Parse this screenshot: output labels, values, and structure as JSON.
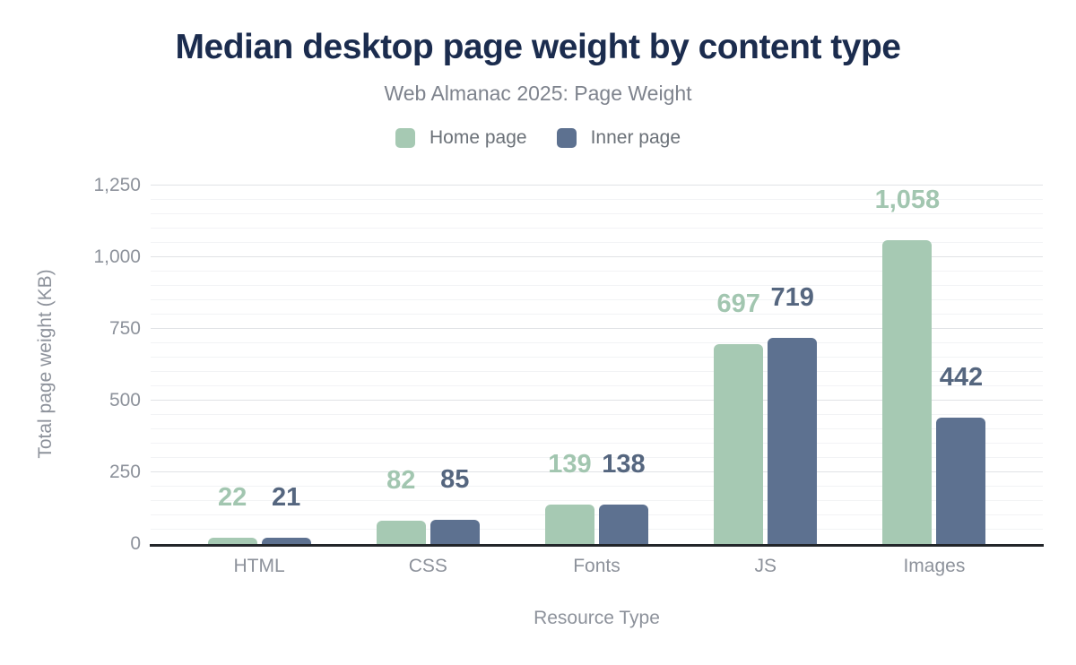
{
  "chart_data": {
    "type": "bar",
    "title": "Median desktop page weight by content type",
    "subtitle": "Web Almanac 2025: Page Weight",
    "xlabel": "Resource Type",
    "ylabel": "Total page weight (KB)",
    "categories": [
      "HTML",
      "CSS",
      "Fonts",
      "JS",
      "Images"
    ],
    "series": [
      {
        "name": "Home page",
        "values": [
          22,
          82,
          139,
          697,
          1058
        ],
        "color": "#a6c9b3",
        "label_color": "#a2c6b0"
      },
      {
        "name": "Inner page",
        "values": [
          21,
          85,
          138,
          719,
          442
        ],
        "color": "#5d7190",
        "label_color": "#55667f"
      }
    ],
    "ylim": [
      0,
      1250
    ],
    "ytick_step": 250,
    "yminor_step": 50,
    "ytick_labels": [
      "0",
      "250",
      "500",
      "750",
      "1,000",
      "1,250"
    ],
    "grid": true,
    "legend_position": "top",
    "value_label_format": "thousands-comma"
  },
  "theme": {
    "title_color": "#1b2c4e",
    "subtitle_color": "#7e838d",
    "legend_text_color": "#6b7178",
    "axis_text_color": "#8d929b",
    "major_grid_color": "#e1e3e6",
    "minor_grid_color": "#f2f3f5",
    "baseline_color": "#222529",
    "background_color": "#ffffff"
  }
}
